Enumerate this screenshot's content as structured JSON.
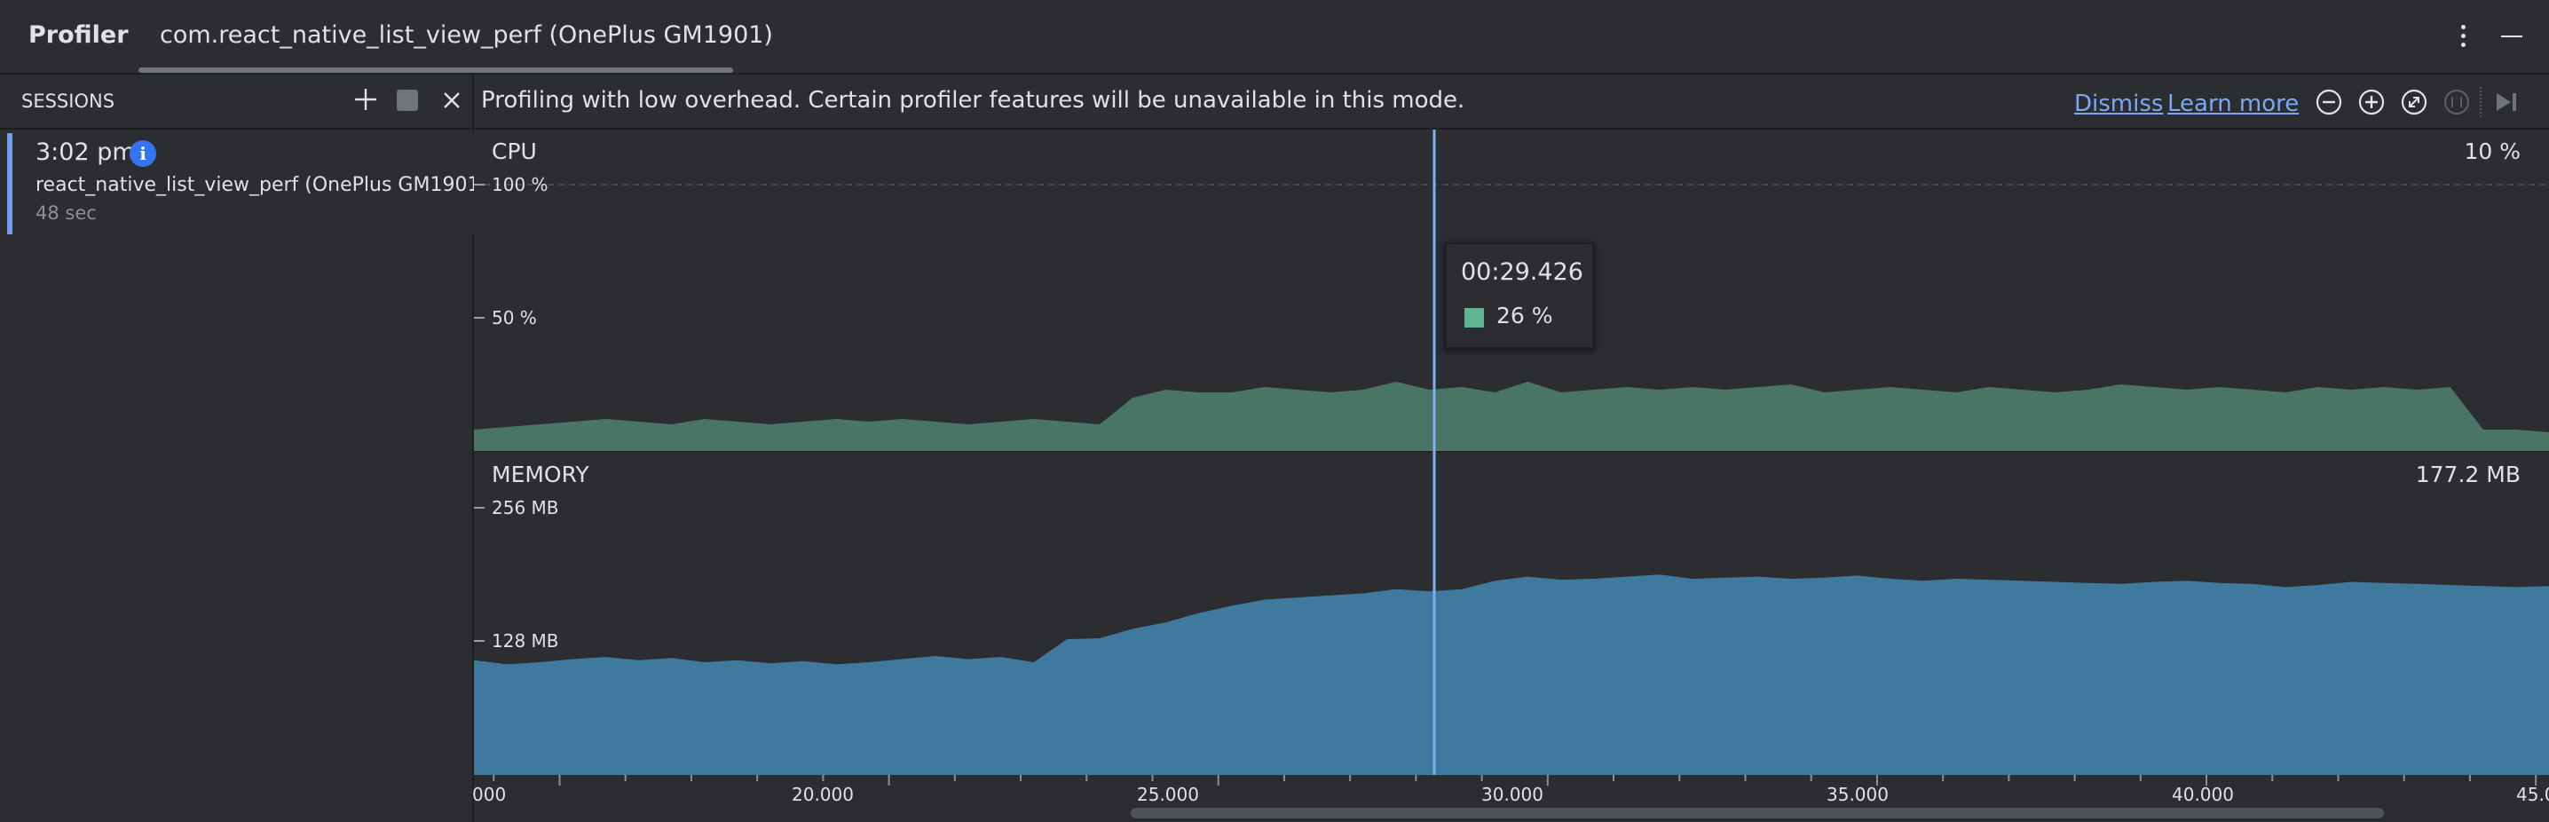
{
  "header": {
    "tool_title": "Profiler",
    "process_tab": "com.react_native_list_view_perf (OnePlus GM1901)"
  },
  "sessions": {
    "label": "SESSIONS",
    "items": [
      {
        "time": "3:02 pm",
        "name": "react_native_list_view_perf (OnePlus GM1901)",
        "duration": "48 sec"
      }
    ]
  },
  "banner": {
    "message": "Profiling with low overhead. Certain profiler features will be unavailable in this mode.",
    "dismiss": "Dismiss",
    "learn_more": "Learn more"
  },
  "toolbar": {
    "icons": [
      "zoom-out-icon",
      "zoom-in-icon",
      "reset-zoom-icon",
      "frame-selection-icon",
      "go-to-live-icon"
    ]
  },
  "colors": {
    "cpu_fill": "#4a7564",
    "memory_fill": "#3f7a9e",
    "cursor": "#7db0f2",
    "tooltip_swatch": "#5fb58f",
    "link": "#7aa8f5",
    "accent": "#3574f0"
  },
  "chart_data": [
    {
      "type": "area",
      "title": "CPU",
      "current_value": "10 %",
      "y_ticks": [
        "100 %",
        "50 %"
      ],
      "ylim": [
        0,
        100
      ],
      "x": [
        13.7,
        14.2,
        14.7,
        15.2,
        15.7,
        16.2,
        16.7,
        17.2,
        17.7,
        18.2,
        18.7,
        19.2,
        19.7,
        20.2,
        20.7,
        21.2,
        21.7,
        22.2,
        22.7,
        23.2,
        23.7,
        24.2,
        24.7,
        25.2,
        25.7,
        26.2,
        26.7,
        27.2,
        27.7,
        28.2,
        28.7,
        29.2,
        29.7,
        30.2,
        30.7,
        31.2,
        31.7,
        32.2,
        32.7,
        33.2,
        33.7,
        34.2,
        34.7,
        35.2,
        35.7,
        36.2,
        36.7,
        37.2,
        37.7,
        38.2,
        38.7,
        39.2,
        39.7,
        40.2,
        40.7,
        41.2,
        41.7,
        42.2,
        42.7,
        43.2,
        43.7,
        44.2,
        44.7,
        45.2
      ],
      "series": [
        {
          "values": [
            8,
            9,
            10,
            11,
            12,
            11,
            10,
            12,
            11,
            10,
            11,
            12,
            11,
            12,
            11,
            10,
            11,
            12,
            11,
            10,
            20,
            23,
            22,
            22,
            24,
            23,
            22,
            23,
            26,
            23,
            24,
            22,
            26,
            22,
            23,
            24,
            23,
            24,
            23,
            24,
            25,
            22,
            23,
            24,
            23,
            22,
            24,
            23,
            22,
            23,
            25,
            24,
            23,
            24,
            23,
            22,
            24,
            23,
            24,
            23,
            24,
            8,
            8,
            7
          ]
        }
      ],
      "cursor": {
        "time": "00:29.426",
        "value": "26 %"
      }
    },
    {
      "type": "area",
      "title": "MEMORY",
      "current_value": "177.2 MB",
      "y_ticks": [
        "256 MB",
        "128 MB"
      ],
      "ylim": [
        0,
        256
      ],
      "x": [
        13.7,
        14.2,
        14.7,
        15.2,
        15.7,
        16.2,
        16.7,
        17.2,
        17.7,
        18.2,
        18.7,
        19.2,
        19.7,
        20.2,
        20.7,
        21.2,
        21.7,
        22.2,
        22.7,
        23.2,
        23.7,
        24.2,
        24.7,
        25.2,
        25.7,
        26.2,
        26.7,
        27.2,
        27.7,
        28.2,
        28.7,
        29.2,
        29.7,
        30.2,
        30.7,
        31.2,
        31.7,
        32.2,
        32.7,
        33.2,
        33.7,
        34.2,
        34.7,
        35.2,
        35.7,
        36.2,
        36.7,
        37.2,
        37.7,
        38.2,
        38.7,
        39.2,
        39.7,
        40.2,
        40.7,
        41.2,
        41.7,
        42.2,
        42.7,
        43.2,
        43.7,
        44.2,
        44.7,
        45.2
      ],
      "series": [
        {
          "values": [
            110,
            106,
            108,
            111,
            113,
            110,
            112,
            108,
            110,
            107,
            109,
            106,
            108,
            111,
            114,
            111,
            113,
            108,
            130,
            131,
            140,
            146,
            155,
            162,
            168,
            170,
            172,
            174,
            178,
            176,
            178,
            186,
            190,
            187,
            188,
            190,
            192,
            188,
            189,
            190,
            188,
            189,
            191,
            188,
            186,
            188,
            187,
            186,
            185,
            184,
            183,
            185,
            186,
            184,
            183,
            180,
            182,
            185,
            184,
            183,
            182,
            181,
            180,
            181
          ]
        }
      ]
    }
  ],
  "timeline": {
    "labels": [
      "000",
      "20.000",
      "25.000",
      "30.000",
      "35.000",
      "40.000",
      "45.0"
    ]
  }
}
